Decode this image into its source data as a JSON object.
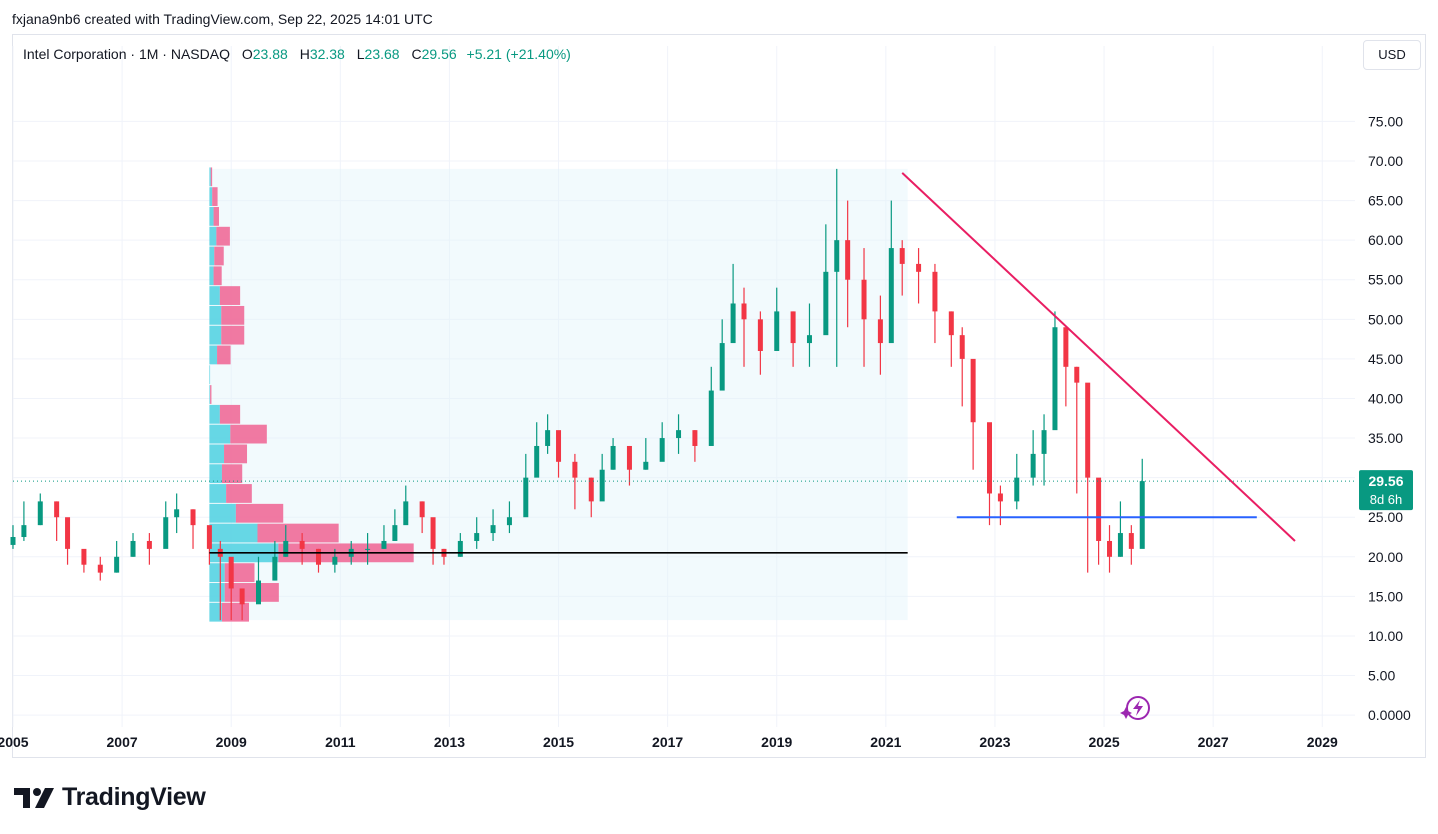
{
  "caption": "fxjana9nb6 created with TradingView.com, Sep 22, 2025 14:01 UTC",
  "legend": {
    "title": "Intel Corporation · 1M · NASDAQ",
    "open_label": "O",
    "open_value": "23.88",
    "high_label": "H",
    "high_value": "32.38",
    "low_label": "L",
    "low_value": "23.68",
    "close_label": "C",
    "close_value": "29.56",
    "change": "+5.21 (+21.40%)"
  },
  "currency_button": "USD",
  "price_badge": {
    "price": "29.56",
    "countdown": "8d 6h"
  },
  "logo_text": "TradingView",
  "colors": {
    "up": "#089981",
    "down": "#f23645",
    "trendline": "#e91e63",
    "support": "#2962ff",
    "level": "#000000",
    "badge": "#089981",
    "vp_up": "#4dd0e1",
    "vp_down": "#f06292",
    "vp_range": "#e3f4fb"
  },
  "chart_data": {
    "type": "candlestick",
    "symbol": "Intel Corporation",
    "interval": "1M",
    "exchange": "NASDAQ",
    "y_ticks": [
      "0.0000",
      "5.00",
      "10.00",
      "15.00",
      "20.00",
      "25.00",
      "30.00",
      "35.00",
      "40.00",
      "45.00",
      "50.00",
      "55.00",
      "60.00",
      "65.00",
      "70.00",
      "75.00"
    ],
    "x_ticks": [
      "2005",
      "2007",
      "2009",
      "2011",
      "2013",
      "2015",
      "2017",
      "2019",
      "2021",
      "2023",
      "2025",
      "2027",
      "2029"
    ],
    "ylim": [
      -1.5,
      82
    ],
    "xlim": [
      2005.0,
      2029.6
    ],
    "last_price": 29.56,
    "close_series": {
      "x": [
        2005.0,
        2005.2,
        2005.5,
        2005.8,
        2006.0,
        2006.3,
        2006.6,
        2006.9,
        2007.2,
        2007.5,
        2007.8,
        2008.0,
        2008.3,
        2008.6,
        2008.8,
        2009.0,
        2009.2,
        2009.5,
        2009.8,
        2010.0,
        2010.3,
        2010.6,
        2010.9,
        2011.2,
        2011.5,
        2011.8,
        2012.0,
        2012.2,
        2012.5,
        2012.7,
        2012.9,
        2013.2,
        2013.5,
        2013.8,
        2014.1,
        2014.4,
        2014.6,
        2014.8,
        2015.0,
        2015.3,
        2015.6,
        2015.8,
        2016.0,
        2016.3,
        2016.6,
        2016.9,
        2017.2,
        2017.5,
        2017.8,
        2018.0,
        2018.2,
        2018.4,
        2018.7,
        2019.0,
        2019.3,
        2019.6,
        2019.9,
        2020.1,
        2020.3,
        2020.6,
        2020.9,
        2021.1,
        2021.3,
        2021.6,
        2021.9,
        2022.2,
        2022.4,
        2022.6,
        2022.9,
        2023.1,
        2023.4,
        2023.7,
        2023.9,
        2024.1,
        2024.3,
        2024.5,
        2024.7,
        2024.9,
        2025.1,
        2025.3,
        2025.5,
        2025.7
      ],
      "close": [
        22.5,
        24,
        27,
        25,
        21,
        19,
        18,
        20,
        22,
        21,
        25,
        26,
        24,
        21,
        20,
        16,
        14,
        17,
        20,
        22,
        21,
        19,
        20,
        21,
        21,
        22,
        24,
        27,
        25,
        21,
        20,
        22,
        23,
        24,
        25,
        30,
        34,
        36,
        32,
        30,
        27,
        31,
        34,
        31,
        32,
        35,
        36,
        34,
        41,
        47,
        52,
        50,
        46,
        51,
        47,
        48,
        56,
        60,
        55,
        50,
        47,
        59,
        57,
        56,
        51,
        48,
        45,
        37,
        28,
        27,
        30,
        33,
        36,
        49,
        44,
        42,
        30,
        22,
        20,
        23,
        21,
        29.56
      ],
      "high": [
        24,
        27,
        28,
        27,
        22,
        20,
        20,
        22,
        23,
        23,
        27,
        28,
        26,
        22,
        22,
        18,
        16,
        20,
        22,
        24,
        23,
        21,
        21,
        22,
        23,
        24,
        26,
        29,
        27,
        23,
        21,
        23,
        25,
        26,
        27,
        33,
        37,
        38,
        35,
        33,
        30,
        33,
        35,
        34,
        35,
        37,
        38,
        36,
        44,
        50,
        57,
        54,
        51,
        54,
        51,
        52,
        62,
        69,
        65,
        59,
        53,
        65,
        60,
        59,
        57,
        51,
        49,
        44,
        32,
        29,
        33,
        36,
        38,
        51,
        47,
        44,
        37,
        25,
        24,
        27,
        24,
        32.38
      ],
      "low": [
        21,
        22,
        24,
        22,
        19,
        18,
        17,
        18,
        20,
        19,
        23,
        23,
        21,
        19,
        12,
        12,
        12,
        15,
        17,
        20,
        19,
        18,
        18,
        19,
        19,
        21,
        22,
        25,
        23,
        19,
        19,
        20,
        21,
        22,
        23,
        28,
        32,
        33,
        30,
        26,
        25,
        28,
        31,
        29,
        31,
        33,
        33,
        32,
        39,
        45,
        48,
        44,
        43,
        47,
        44,
        44,
        51,
        44,
        49,
        44,
        43,
        55,
        53,
        52,
        47,
        44,
        39,
        31,
        24,
        24,
        26,
        29,
        29,
        43,
        39,
        28,
        18,
        19,
        18,
        20,
        19,
        23.68
      ]
    },
    "volume_profile": {
      "price_range": [
        12,
        69
      ],
      "date_range": [
        2008.6,
        2021.4
      ],
      "rows": [
        {
          "price": 13.0,
          "up": 0.18,
          "down": 0.2
        },
        {
          "price": 15.5,
          "up": 0.22,
          "down": 0.4
        },
        {
          "price": 18.0,
          "up": 0.22,
          "down": 0.22
        },
        {
          "price": 20.5,
          "up": 0.99,
          "down": 1.0
        },
        {
          "price": 23.0,
          "up": 0.69,
          "down": 0.6
        },
        {
          "price": 25.5,
          "up": 0.38,
          "down": 0.35
        },
        {
          "price": 28.0,
          "up": 0.24,
          "down": 0.19
        },
        {
          "price": 30.5,
          "up": 0.18,
          "down": 0.15
        },
        {
          "price": 33.0,
          "up": 0.21,
          "down": 0.17
        },
        {
          "price": 35.5,
          "up": 0.3,
          "down": 0.27
        },
        {
          "price": 38.0,
          "up": 0.15,
          "down": 0.15
        },
        {
          "price": 40.5,
          "up": 0.01,
          "down": 0.01
        },
        {
          "price": 43.0,
          "up": 0.01,
          "down": 0.0
        },
        {
          "price": 45.5,
          "up": 0.11,
          "down": 0.1
        },
        {
          "price": 48.0,
          "up": 0.17,
          "down": 0.17
        },
        {
          "price": 50.5,
          "up": 0.17,
          "down": 0.17
        },
        {
          "price": 53.0,
          "up": 0.15,
          "down": 0.15
        },
        {
          "price": 55.5,
          "up": 0.06,
          "down": 0.06
        },
        {
          "price": 58.0,
          "up": 0.07,
          "down": 0.07
        },
        {
          "price": 60.5,
          "up": 0.1,
          "down": 0.1
        },
        {
          "price": 63.0,
          "up": 0.06,
          "down": 0.04
        },
        {
          "price": 65.5,
          "up": 0.04,
          "down": 0.04
        },
        {
          "price": 68.0,
          "up": 0.02,
          "down": 0.01
        }
      ]
    },
    "drawings": {
      "trendline": {
        "from": [
          2021.3,
          68.5
        ],
        "to": [
          2028.5,
          22.0
        ]
      },
      "support": {
        "from": [
          2022.3,
          25.0
        ],
        "to": [
          2027.8,
          25.0
        ],
        "price": 25.0
      },
      "level": {
        "from": [
          2008.6,
          20.5
        ],
        "to": [
          2021.4,
          20.5
        ],
        "price": 20.5
      }
    }
  }
}
